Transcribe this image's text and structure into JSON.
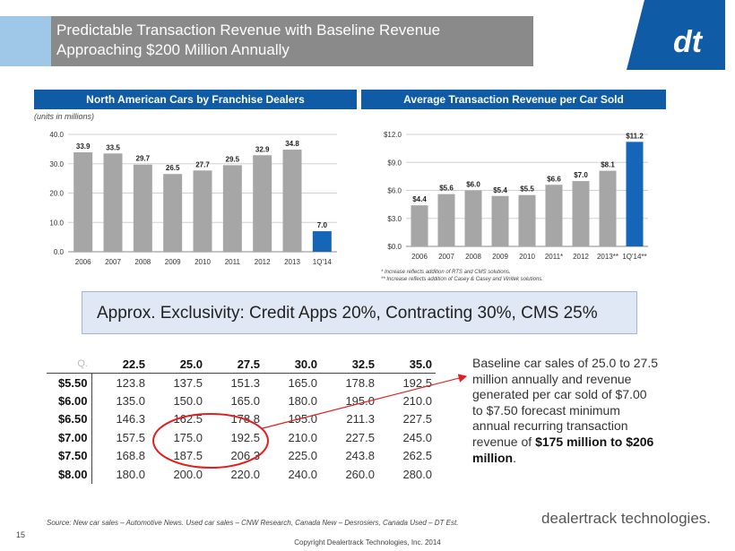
{
  "header": {
    "title_line1": "Predictable Transaction Revenue with Baseline Revenue",
    "title_line2": "Approaching $200 Million Annually"
  },
  "left_panel": {
    "title": "North American Cars by Franchise Dealers",
    "units": "(units in millions)"
  },
  "right_panel": {
    "title": "Average Transaction Revenue per Car Sold",
    "footnote1": "* Increase reflects addition of RTS and CMS solutions.",
    "footnote2": "** Increase reflects addition of Casey & Casey and Vinitek solutions."
  },
  "chart_data": [
    {
      "type": "bar",
      "title": "North American Cars by Franchise Dealers",
      "ylabel": "(units in millions)",
      "categories": [
        "2006",
        "2007",
        "2008",
        "2009",
        "2010",
        "2011",
        "2012",
        "2013",
        "1Q'14"
      ],
      "values": [
        33.9,
        33.5,
        29.7,
        26.5,
        27.7,
        29.5,
        32.9,
        34.8,
        7.0
      ],
      "value_labels": [
        "33.9",
        "33.5",
        "29.7",
        "26.5",
        "27.7",
        "29.5",
        "32.9",
        "34.8",
        "7.0"
      ],
      "ylim": [
        0,
        40
      ],
      "yticks": [
        "0.0",
        "10.0",
        "20.0",
        "30.0",
        "40.0"
      ],
      "highlight_index": 8,
      "colors": {
        "bar": "#a6a6a6",
        "highlight": "#1565b8"
      },
      "grid": true
    },
    {
      "type": "bar",
      "title": "Average Transaction Revenue per Car Sold",
      "categories": [
        "2006",
        "2007",
        "2008",
        "2009",
        "2010",
        "2011*",
        "2012",
        "2013**",
        "1Q'14**"
      ],
      "values": [
        4.4,
        5.6,
        6.0,
        5.4,
        5.5,
        6.6,
        7.0,
        8.1,
        11.2
      ],
      "value_labels": [
        "$4.4",
        "$5.6",
        "$6.0",
        "$5.4",
        "$5.5",
        "$6.6",
        "$7.0",
        "$8.1",
        "$11.2"
      ],
      "ylim": [
        0,
        12
      ],
      "yticks": [
        "$0.0",
        "$3.0",
        "$6.0",
        "$9.0",
        "$12.0"
      ],
      "highlight_index": 8,
      "colors": {
        "bar": "#a6a6a6",
        "highlight": "#1565b8"
      },
      "grid": true
    }
  ],
  "banner": {
    "text": "Approx. Exclusivity: Credit Apps 20%, Contracting 30%, CMS 25%"
  },
  "sensitivity_table": {
    "corner": "Q.",
    "columns": [
      "22.5",
      "25.0",
      "27.5",
      "30.0",
      "32.5",
      "35.0"
    ],
    "rows": [
      {
        "label": "$5.50",
        "values": [
          "123.8",
          "137.5",
          "151.3",
          "165.0",
          "178.8",
          "192.5"
        ]
      },
      {
        "label": "$6.00",
        "values": [
          "135.0",
          "150.0",
          "165.0",
          "180.0",
          "195.0",
          "210.0"
        ]
      },
      {
        "label": "$6.50",
        "values": [
          "146.3",
          "162.5",
          "178.8",
          "195.0",
          "211.3",
          "227.5"
        ]
      },
      {
        "label": "$7.00",
        "values": [
          "157.5",
          "175.0",
          "192.5",
          "210.0",
          "227.5",
          "245.0"
        ]
      },
      {
        "label": "$7.50",
        "values": [
          "168.8",
          "187.5",
          "206.3",
          "225.0",
          "243.8",
          "262.5"
        ]
      },
      {
        "label": "$8.00",
        "values": [
          "180.0",
          "200.0",
          "220.0",
          "240.0",
          "260.0",
          "280.0"
        ]
      }
    ]
  },
  "note": {
    "text": "Baseline car sales of 25.0 to 27.5 million annually and revenue generated per car sold of $7.00 to $7.50 forecast minimum annual recurring transaction revenue of",
    "bold": "$175 million to $206 million",
    "end": "."
  },
  "footer": {
    "source": "Source: New car sales – Automotive News. Used car sales – CNW Research, Canada New – Desrosiers, Canada Used – DT Est.",
    "page_number": "15",
    "copyright": "Copyright Dealertrack Technologies, Inc. 2014",
    "brand": "dealertrack technologies."
  },
  "logo": {
    "text": "dt",
    "icon": "dealertrack-logo-icon"
  },
  "colors": {
    "accent_blue": "#0f5ba5",
    "header_gray": "#8a8a8a",
    "annotation_red": "#e02020"
  }
}
